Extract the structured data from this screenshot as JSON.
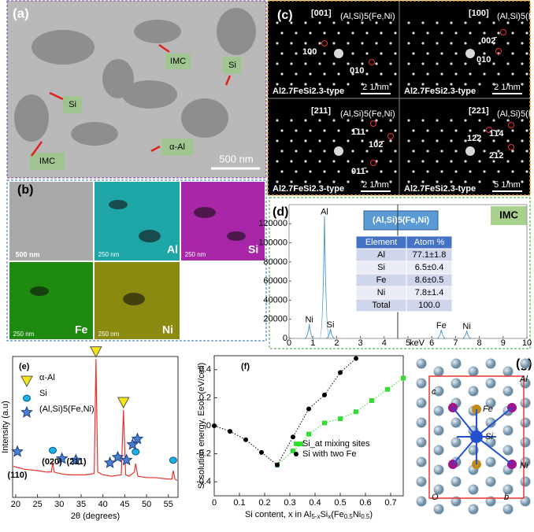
{
  "panels": {
    "a": {
      "label": "(a)",
      "annotations": [
        "IMC",
        "Si",
        "Si",
        "α-Al",
        "IMC"
      ],
      "scale": "500 nm"
    },
    "b": {
      "label": "(b)",
      "tiles": [
        {
          "scale": "500 nm",
          "element": null
        },
        {
          "scale": "250 nm",
          "element": "Al"
        },
        {
          "scale": "250 nm",
          "element": "Si"
        },
        {
          "scale": "250 nm",
          "element": "Fe"
        },
        {
          "scale": "250 nm",
          "element": "Ni"
        }
      ]
    },
    "c": {
      "label": "(c)",
      "phase": "(Al,Si)5(Fe,Ni)",
      "type_label": "Al2.7FeSi2.3-type",
      "patterns": [
        {
          "zone": "[001]",
          "spots": [
            "100",
            "010"
          ],
          "scale": "2 1/nm"
        },
        {
          "zone": "[100]",
          "spots": [
            "002̄",
            "010"
          ],
          "scale": "2 1/nm"
        },
        {
          "zone": "[211]",
          "spots": [
            "1̄11",
            "102̄",
            "011̄"
          ],
          "scale": "2 1/nm"
        },
        {
          "zone": "[221]",
          "spots": [
            "12̄2",
            "1̄14",
            "2̄12"
          ],
          "scale": "5 1/nm"
        }
      ]
    },
    "d": {
      "label": "(d)",
      "tag": "IMC",
      "title": "(Al,Si)5(Fe,Ni)",
      "unit": "keV",
      "table": {
        "header": [
          "Element",
          "Atom %"
        ],
        "rows": [
          [
            "Al",
            "77.1±1.8"
          ],
          [
            "Si",
            "6.5±0.4"
          ],
          [
            "Fe",
            "8.6±0.5"
          ],
          [
            "Ni",
            "7.8±1.4"
          ],
          [
            "Total",
            "100.0"
          ]
        ]
      },
      "xticks": [
        0,
        1,
        2,
        3,
        4,
        5,
        6,
        7,
        8,
        9,
        10
      ],
      "yticks": [
        0,
        20000,
        40000,
        60000,
        80000,
        100000,
        120000
      ],
      "peaks": [
        {
          "label": "Al",
          "kev": 1.49,
          "counts": 128000
        },
        {
          "label": "Ni",
          "kev": 0.85,
          "counts": 15000
        },
        {
          "label": "Si",
          "kev": 1.74,
          "counts": 10000
        },
        {
          "label": "Fe",
          "kev": 6.4,
          "counts": 9000
        },
        {
          "label": "Ni",
          "kev": 7.47,
          "counts": 8000
        }
      ]
    },
    "g": {
      "label": "(g)",
      "atoms": [
        "Al",
        "Fe",
        "Si",
        "Ni"
      ],
      "axes": [
        "c",
        "O",
        "b"
      ]
    }
  },
  "chart_data": [
    {
      "type": "line",
      "label": "(e)",
      "xlabel": "2θ (degrees)",
      "ylabel": "Intensity (a.u)",
      "color": "#e8332a",
      "x": [
        19.5,
        22,
        25,
        27,
        28.2,
        28.5,
        28.8,
        30,
        32,
        34,
        36,
        38,
        38.4,
        38.8,
        40,
        42,
        44.2,
        44.7,
        45.2,
        46,
        47.2,
        47.5,
        48,
        50,
        52,
        55,
        55.8,
        56.1,
        56.5,
        57
      ],
      "values": [
        22,
        20,
        19,
        18,
        18,
        25,
        18,
        17,
        16,
        16,
        16,
        17,
        98,
        18,
        16,
        15,
        16,
        62,
        16,
        15,
        18,
        24,
        15,
        14,
        14,
        13,
        13,
        19,
        13,
        12
      ],
      "xlim": [
        19.3,
        57.2
      ],
      "ylim": [
        0,
        100
      ],
      "xticks": [
        20,
        25,
        30,
        35,
        40,
        45,
        50,
        55
      ],
      "legend": [
        "α-Al",
        "Si",
        "(Al,Si)5(Fe,Ni)"
      ],
      "markers": [
        {
          "kind": 0,
          "x": 38.4,
          "y": 98
        },
        {
          "kind": 0,
          "x": 44.7,
          "y": 62
        },
        {
          "kind": 1,
          "x": 28.5,
          "y": 30
        },
        {
          "kind": 1,
          "x": 47.5,
          "y": 29
        },
        {
          "kind": 1,
          "x": 56.1,
          "y": 23
        },
        {
          "kind": 2,
          "x": 20.4,
          "y": 28
        },
        {
          "kind": 2,
          "x": 30.6,
          "y": 23
        },
        {
          "kind": 2,
          "x": 33.8,
          "y": 22
        },
        {
          "kind": 2,
          "x": 41.6,
          "y": 20
        },
        {
          "kind": 2,
          "x": 43.4,
          "y": 24
        },
        {
          "kind": 2,
          "x": 45.4,
          "y": 22
        },
        {
          "kind": 2,
          "x": 46.8,
          "y": 33
        },
        {
          "kind": 2,
          "x": 47.9,
          "y": 37
        }
      ],
      "peak_labels": [
        "(110)",
        "(020)",
        "(211)"
      ]
    },
    {
      "type": "scatter",
      "label": "(f)",
      "ylabel": "Si solution energy, Esol. (eV/cell)",
      "xlabel_parts": [
        "Si content, x in Al",
        "5-x",
        "Si",
        "x",
        "(Fe",
        "0.5",
        "Ni",
        "0.5",
        ")"
      ],
      "xlim": [
        0,
        0.75
      ],
      "ylim": [
        -0.5,
        0.5
      ],
      "xticks": [
        0,
        0.1,
        0.2,
        0.3,
        0.4,
        0.5,
        0.6,
        0.7
      ],
      "yticks": [
        0.4,
        0.2,
        0,
        -0.2,
        -0.4
      ],
      "series": [
        {
          "name": "Si_at mixing sites",
          "color": "#2fe02f",
          "marker": "square",
          "x": [
            0.25,
            0.3125,
            0.3438,
            0.375,
            0.4375,
            0.5,
            0.5625,
            0.625,
            0.6875,
            0.75
          ],
          "values": [
            -0.28,
            -0.18,
            -0.13,
            -0.06,
            0.02,
            0.05,
            0.1,
            0.18,
            0.26,
            0.34
          ]
        },
        {
          "name": "Si with two Fe",
          "color": "#000000",
          "marker": "circle",
          "x": [
            0,
            0.0625,
            0.125,
            0.1875,
            0.25,
            0.3125,
            0.375,
            0.4375,
            0.5,
            0.5625
          ],
          "values": [
            0,
            -0.04,
            -0.1,
            -0.19,
            -0.28,
            -0.08,
            0.12,
            0.22,
            0.38,
            0.48
          ]
        }
      ]
    }
  ]
}
